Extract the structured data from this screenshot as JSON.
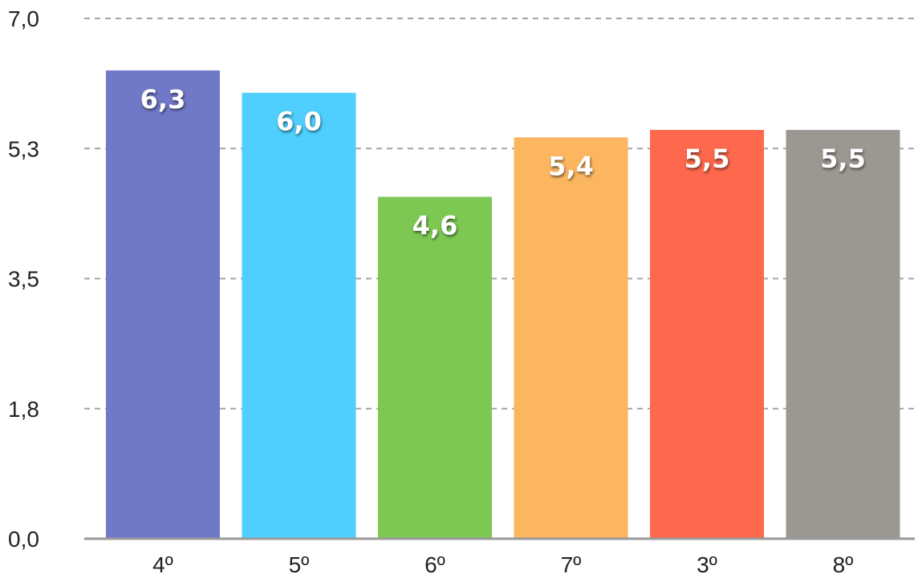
{
  "chart_data": {
    "type": "bar",
    "categories": [
      "4º",
      "5º",
      "6º",
      "7º",
      "3º",
      "8º"
    ],
    "values": [
      6.3,
      6.0,
      4.6,
      5.4,
      5.5,
      5.5
    ],
    "data_labels": [
      "6,3",
      "6,0",
      "4,6",
      "5,4",
      "5,5",
      "5,5"
    ],
    "colors": [
      "#7078c8",
      "#4fcffd",
      "#7cc853",
      "#fdb660",
      "#fe684c",
      "#9d9792"
    ],
    "yticks": [
      0.0,
      1.75,
      3.5,
      5.25,
      7.0
    ],
    "ytick_labels": [
      "0,0",
      "1,8",
      "3,5",
      "5,3",
      "7,0"
    ],
    "ylim": [
      0,
      7
    ],
    "grid": true,
    "title": "",
    "xlabel": "",
    "ylabel": ""
  }
}
